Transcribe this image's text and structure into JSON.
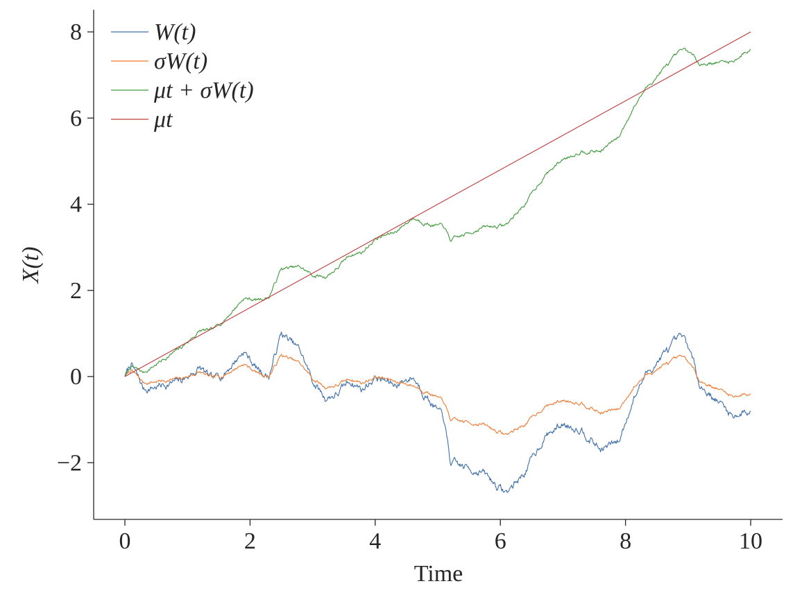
{
  "chart_data": {
    "type": "line",
    "xlabel": "Time",
    "ylabel": "X(t)",
    "xlim": [
      -0.5,
      10.5
    ],
    "ylim": [
      -3.3,
      8.5
    ],
    "xticks": [
      0,
      2,
      4,
      6,
      8,
      10
    ],
    "yticks": [
      -2,
      0,
      2,
      4,
      6,
      8
    ],
    "xtick_labels": [
      "0",
      "2",
      "4",
      "6",
      "8",
      "10"
    ],
    "ytick_labels": [
      "−2",
      "0",
      "2",
      "4",
      "6",
      "8"
    ],
    "grid": false,
    "legend_position": "top-left",
    "series": [
      {
        "name": "W(t)",
        "color": "#3e6fa8",
        "noise": 0.13,
        "x": [
          0,
          0.1,
          0.3,
          0.6,
          0.9,
          1.2,
          1.4,
          1.6,
          1.9,
          2.1,
          2.3,
          2.5,
          2.8,
          3.0,
          3.2,
          3.4,
          3.6,
          3.8,
          4.0,
          4.3,
          4.6,
          4.9,
          5.1,
          5.2,
          5.4,
          5.7,
          6.0,
          6.1,
          6.4,
          6.7,
          7.0,
          7.3,
          7.6,
          7.9,
          8.1,
          8.3,
          8.6,
          8.9,
          9.0,
          9.2,
          9.5,
          9.7,
          10.0
        ],
        "y": [
          0,
          0.3,
          -0.3,
          -0.2,
          -0.1,
          0.2,
          -0.1,
          0.1,
          0.6,
          0.2,
          0.0,
          1.0,
          0.6,
          -0.1,
          -0.5,
          -0.4,
          -0.1,
          -0.3,
          0.0,
          -0.2,
          0.0,
          -0.6,
          -1.0,
          -2.0,
          -2.1,
          -2.2,
          -2.6,
          -2.7,
          -2.2,
          -1.4,
          -1.1,
          -1.2,
          -1.7,
          -1.5,
          -0.6,
          0.0,
          0.5,
          0.9,
          0.7,
          -0.2,
          -0.6,
          -0.9,
          -0.8
        ]
      },
      {
        "name": "σW(t)",
        "color": "#ed7a32",
        "noise": 0.06,
        "x": [
          0,
          0.1,
          0.3,
          0.6,
          0.9,
          1.2,
          1.4,
          1.6,
          1.9,
          2.1,
          2.3,
          2.5,
          2.8,
          3.0,
          3.2,
          3.4,
          3.6,
          3.8,
          4.0,
          4.3,
          4.6,
          4.9,
          5.1,
          5.2,
          5.4,
          5.7,
          6.0,
          6.1,
          6.4,
          6.7,
          7.0,
          7.3,
          7.6,
          7.9,
          8.1,
          8.3,
          8.6,
          8.9,
          9.0,
          9.2,
          9.5,
          9.7,
          10.0
        ],
        "y": [
          0,
          0.15,
          -0.15,
          -0.1,
          -0.05,
          0.1,
          -0.05,
          0.05,
          0.3,
          0.1,
          0.0,
          0.5,
          0.3,
          -0.05,
          -0.25,
          -0.2,
          -0.05,
          -0.15,
          0.0,
          -0.1,
          -0.2,
          -0.4,
          -0.6,
          -1.0,
          -1.05,
          -1.1,
          -1.3,
          -1.35,
          -1.1,
          -0.7,
          -0.55,
          -0.6,
          -0.85,
          -0.75,
          -0.3,
          0.0,
          0.25,
          0.45,
          0.35,
          -0.1,
          -0.3,
          -0.45,
          -0.4
        ]
      },
      {
        "name": "μt + σW(t)",
        "color": "#3d9a39",
        "noise": 0.06,
        "x": [
          0,
          0.1,
          0.3,
          0.6,
          0.9,
          1.2,
          1.4,
          1.6,
          1.9,
          2.1,
          2.3,
          2.5,
          2.8,
          3.0,
          3.2,
          3.4,
          3.6,
          3.8,
          4.0,
          4.3,
          4.6,
          4.9,
          5.1,
          5.2,
          5.4,
          5.7,
          6.0,
          6.1,
          6.4,
          6.7,
          7.0,
          7.3,
          7.6,
          7.9,
          8.1,
          8.3,
          8.6,
          8.9,
          9.0,
          9.2,
          9.5,
          9.7,
          10.0
        ],
        "y": [
          0,
          0.23,
          0.09,
          0.38,
          0.67,
          1.06,
          1.07,
          1.33,
          1.82,
          1.78,
          1.84,
          2.5,
          2.54,
          2.35,
          2.31,
          2.52,
          2.83,
          2.89,
          3.2,
          3.34,
          3.68,
          3.52,
          3.48,
          3.16,
          3.27,
          3.46,
          3.5,
          3.53,
          4.02,
          4.66,
          5.05,
          5.24,
          5.23,
          5.57,
          6.18,
          6.64,
          7.13,
          7.57,
          7.55,
          7.26,
          7.3,
          7.31,
          7.6
        ]
      },
      {
        "name": "μt",
        "color": "#c0393b",
        "noise": 0,
        "x": [
          0,
          10
        ],
        "y": [
          0,
          8
        ]
      }
    ]
  }
}
